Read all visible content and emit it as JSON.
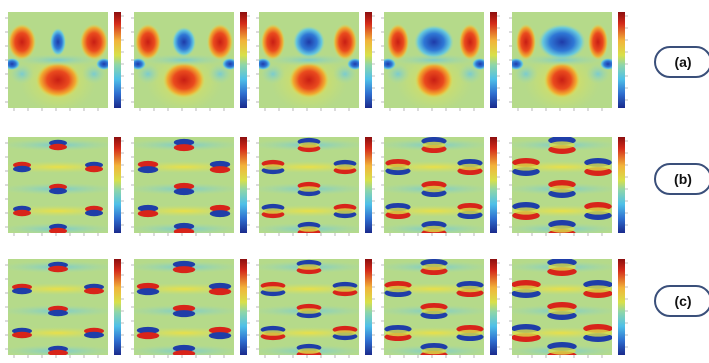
{
  "rows": [
    {
      "label": "(a)",
      "pattern": "wave"
    },
    {
      "label": "(b)",
      "pattern": "dipole"
    },
    {
      "label": "(c)",
      "pattern": "dipole-strong"
    }
  ],
  "panels_per_row": 5,
  "colormap": [
    "#1a2a8c",
    "#2f6fd0",
    "#4fc0e8",
    "#8fd6a8",
    "#d8e04a",
    "#f2d23a",
    "#f08a2a",
    "#d42a1a",
    "#8c0f0f"
  ]
}
